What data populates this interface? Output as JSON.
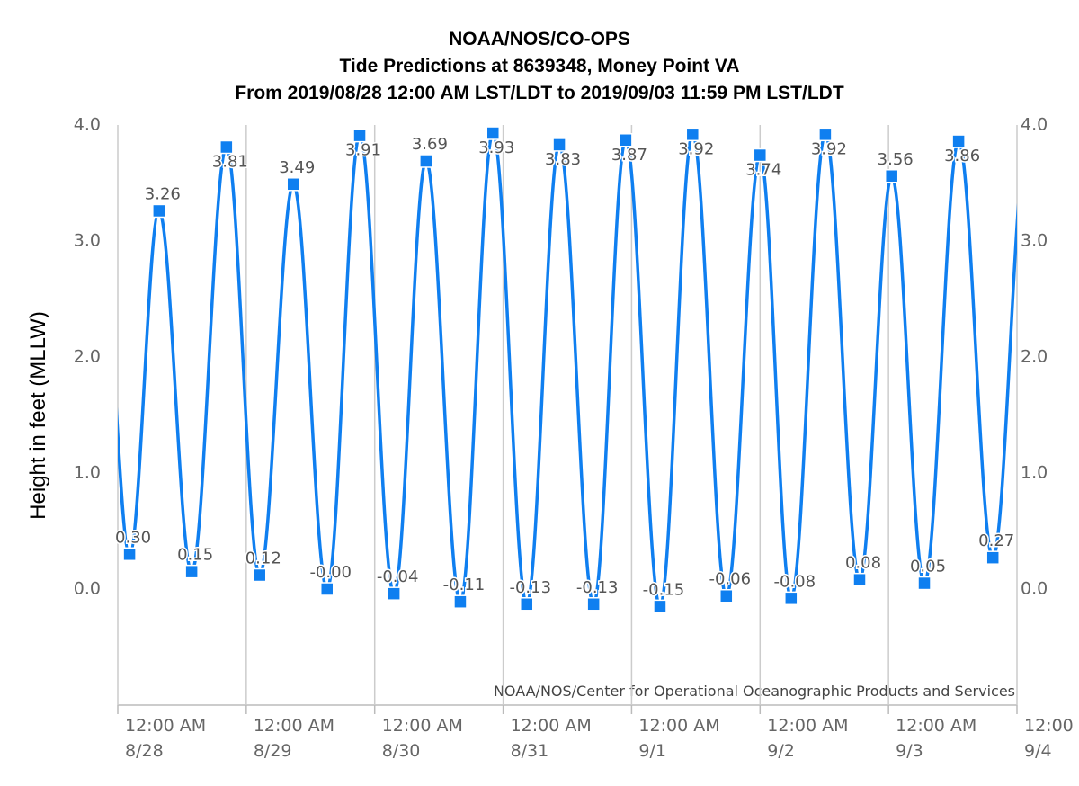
{
  "chart_data": {
    "type": "line",
    "title": "NOAA/NOS/CO-OPS",
    "subtitle": "Tide Predictions at 8639348, Money Point VA",
    "subtitle2": "From 2019/08/28 12:00 AM LST/LDT to 2019/09/03 11:59 PM LST/LDT",
    "y_label": "Height in feet (MLLW)",
    "credit": "NOAA/NOS/Center for Operational Oceanographic Products and Services",
    "x": [
      2.2,
      7.7,
      13.8,
      20.3,
      26.5,
      32.8,
      39.1,
      45.2,
      51.6,
      57.6,
      64.0,
      70.1,
      76.4,
      82.5,
      88.9,
      94.9,
      101.3,
      107.4,
      113.7,
      120.0,
      125.8,
      132.2,
      138.6,
      144.6,
      150.7,
      157.1,
      163.5
    ],
    "series": [
      {
        "color": "#0f7ff0",
        "values": [
          0.3,
          3.26,
          0.15,
          3.81,
          0.12,
          3.49,
          -0.0,
          3.91,
          -0.04,
          3.69,
          -0.11,
          3.93,
          -0.13,
          3.83,
          -0.13,
          3.87,
          -0.15,
          3.92,
          -0.06,
          3.74,
          -0.08,
          3.92,
          0.08,
          3.56,
          0.05,
          3.86,
          0.27
        ],
        "value_labels": [
          "0.30",
          "3.26",
          "0.15",
          "3.81",
          "0.12",
          "3.49",
          "-0.00",
          "3.91",
          "-0.04",
          "3.69",
          "-0.11",
          "3.93",
          "-0.13",
          "3.83",
          "-0.13",
          "3.87",
          "-0.15",
          "3.92",
          "-0.06",
          "3.74",
          "-0.08",
          "3.92",
          "0.08",
          "3.56",
          "0.05",
          "3.86",
          "0.27"
        ]
      }
    ],
    "xlim": [
      0,
      168
    ],
    "xticks": [
      {
        "value": 0,
        "label": "12:00 AM\n8/28"
      },
      {
        "value": 24,
        "label": "12:00 AM\n8/29"
      },
      {
        "value": 48,
        "label": "12:00 AM\n8/30"
      },
      {
        "value": 72,
        "label": "12:00 AM\n8/31"
      },
      {
        "value": 96,
        "label": "12:00 AM\n9/1"
      },
      {
        "value": 120,
        "label": "12:00 AM\n9/2"
      },
      {
        "value": 144,
        "label": "12:00 AM\n9/3"
      },
      {
        "value": 168,
        "label": "12:00\n9/4"
      }
    ],
    "ylim": [
      -1,
      4
    ],
    "yticks": [
      {
        "value": 0,
        "label": "0.0"
      },
      {
        "value": 1,
        "label": "1.0"
      },
      {
        "value": 2,
        "label": "2.0"
      },
      {
        "value": 3,
        "label": "3.0"
      },
      {
        "value": 4,
        "label": "4.0"
      }
    ],
    "x_grid": true
  }
}
